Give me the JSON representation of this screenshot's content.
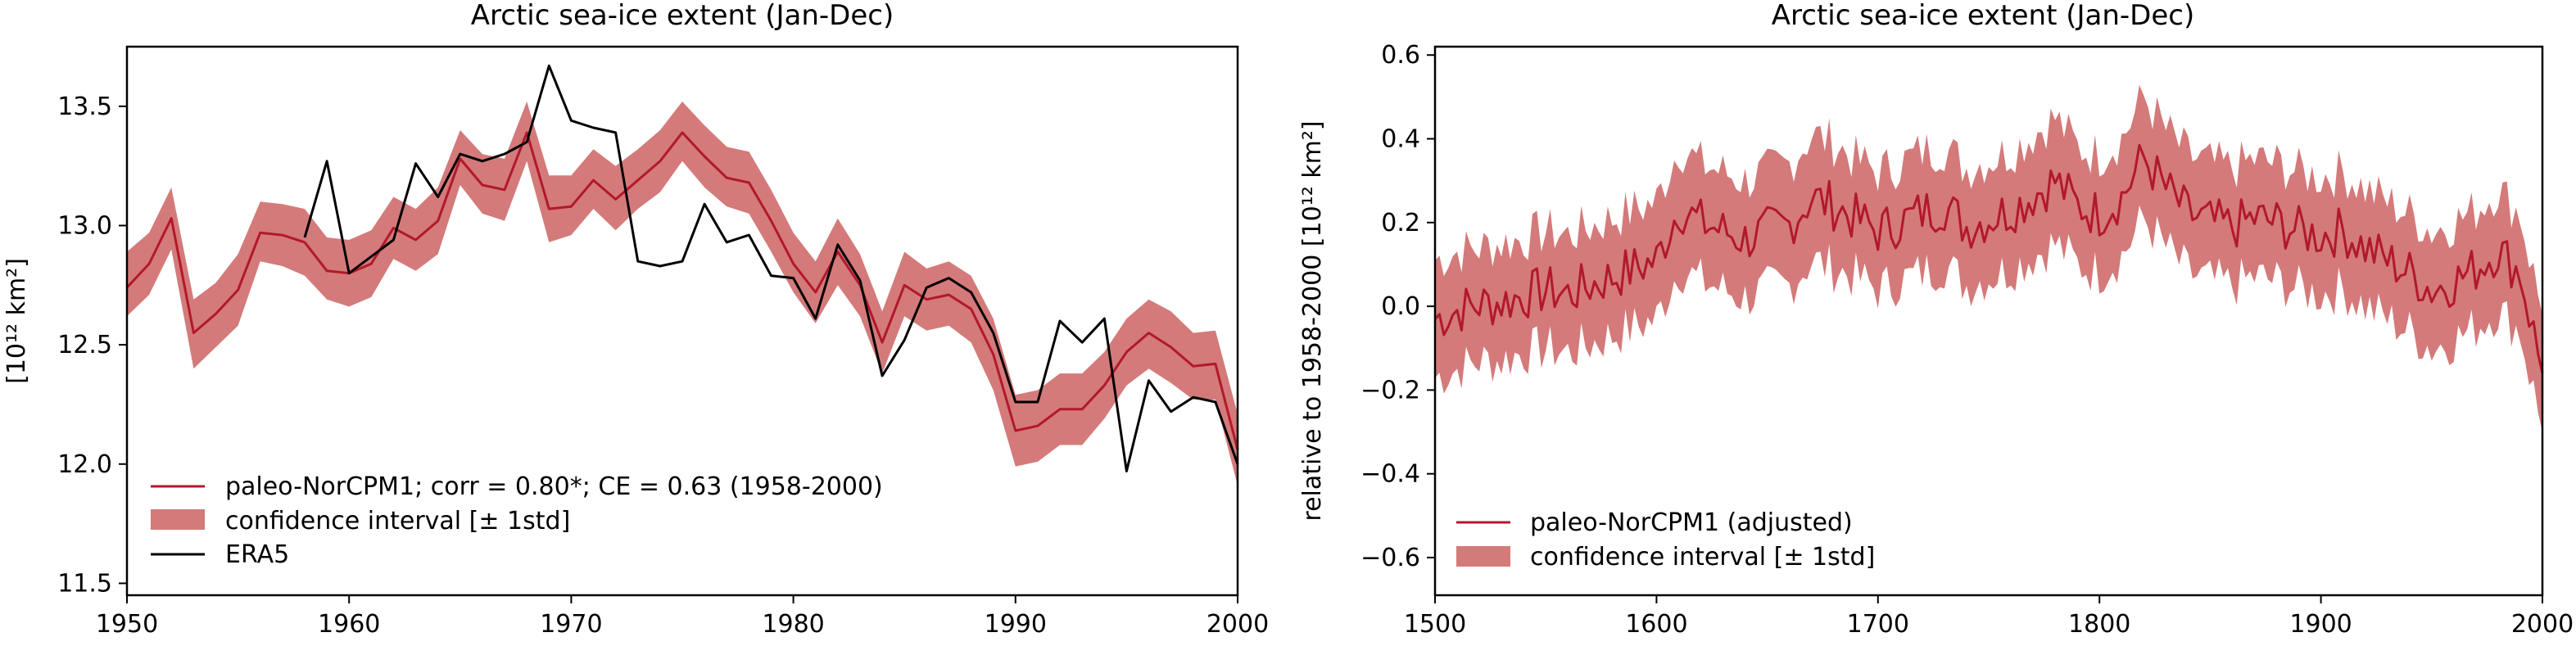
{
  "colors": {
    "model": "#b2182b",
    "band": "#d47a7a",
    "era5": "#000000"
  },
  "chart_data": [
    {
      "type": "line",
      "title": "Arctic sea-ice extent (Jan-Dec)",
      "ylabel": "[10¹² km²]",
      "xlim": [
        1950,
        2000
      ],
      "ylim": [
        11.45,
        13.75
      ],
      "xticks": [
        1950,
        1960,
        1970,
        1980,
        1990,
        2000
      ],
      "yticks": [
        11.5,
        12.0,
        12.5,
        13.0,
        13.5
      ],
      "ytick_labels": [
        "11.5",
        "12.0",
        "12.5",
        "13.0",
        "13.5"
      ],
      "legend_position": "lower-left",
      "series": [
        {
          "name": "paleo-NorCPM1; corr = 0.80*; CE = 0.63 (1958-2000)",
          "kind": "line",
          "x": [
            1950,
            1951,
            1952,
            1953,
            1954,
            1955,
            1956,
            1957,
            1958,
            1959,
            1960,
            1961,
            1962,
            1963,
            1964,
            1965,
            1966,
            1967,
            1968,
            1969,
            1970,
            1971,
            1972,
            1973,
            1974,
            1975,
            1976,
            1977,
            1978,
            1979,
            1980,
            1981,
            1982,
            1983,
            1984,
            1985,
            1986,
            1987,
            1988,
            1989,
            1990,
            1991,
            1992,
            1993,
            1994,
            1995,
            1996,
            1997,
            1998,
            1999,
            2000
          ],
          "y": [
            12.74,
            12.84,
            13.03,
            12.55,
            12.63,
            12.73,
            12.97,
            12.96,
            12.93,
            12.81,
            12.8,
            12.84,
            12.99,
            12.94,
            13.02,
            13.28,
            13.17,
            13.15,
            13.39,
            13.07,
            13.08,
            13.19,
            13.11,
            13.19,
            13.27,
            13.39,
            13.29,
            13.2,
            13.18,
            13.02,
            12.84,
            12.72,
            12.89,
            12.75,
            12.51,
            12.75,
            12.69,
            12.71,
            12.65,
            12.46,
            12.14,
            12.16,
            12.23,
            12.23,
            12.33,
            12.47,
            12.55,
            12.49,
            12.41,
            12.42,
            12.06
          ]
        },
        {
          "name": "confidence interval [± 1std]",
          "kind": "band",
          "x": [
            1950,
            1951,
            1952,
            1953,
            1954,
            1955,
            1956,
            1957,
            1958,
            1959,
            1960,
            1961,
            1962,
            1963,
            1964,
            1965,
            1966,
            1967,
            1968,
            1969,
            1970,
            1971,
            1972,
            1973,
            1974,
            1975,
            1976,
            1977,
            1978,
            1979,
            1980,
            1981,
            1982,
            1983,
            1984,
            1985,
            1986,
            1987,
            1988,
            1989,
            1990,
            1991,
            1992,
            1993,
            1994,
            1995,
            1996,
            1997,
            1998,
            1999,
            2000
          ],
          "lower": [
            12.62,
            12.71,
            12.9,
            12.4,
            12.49,
            12.58,
            12.85,
            12.83,
            12.79,
            12.69,
            12.66,
            12.7,
            12.86,
            12.81,
            12.88,
            13.17,
            13.05,
            13.02,
            13.27,
            12.93,
            12.96,
            13.07,
            12.98,
            13.07,
            13.14,
            13.27,
            13.16,
            13.08,
            13.05,
            12.89,
            12.72,
            12.59,
            12.75,
            12.62,
            12.38,
            12.62,
            12.56,
            12.58,
            12.51,
            12.31,
            11.99,
            12.01,
            12.08,
            12.08,
            12.19,
            12.33,
            12.4,
            12.34,
            12.27,
            12.27,
            11.91
          ],
          "upper": [
            12.89,
            12.97,
            13.16,
            12.69,
            12.76,
            12.88,
            13.1,
            13.09,
            13.07,
            12.95,
            12.94,
            12.98,
            13.12,
            13.07,
            13.16,
            13.4,
            13.3,
            13.28,
            13.52,
            13.21,
            13.21,
            13.32,
            13.25,
            13.32,
            13.4,
            13.52,
            13.42,
            13.33,
            13.31,
            13.15,
            12.97,
            12.85,
            13.03,
            12.88,
            12.64,
            12.89,
            12.82,
            12.85,
            12.79,
            12.61,
            12.29,
            12.31,
            12.38,
            12.38,
            12.47,
            12.61,
            12.69,
            12.64,
            12.55,
            12.56,
            12.21
          ]
        },
        {
          "name": "ERA5",
          "kind": "line",
          "x": [
            1958,
            1959,
            1960,
            1961,
            1962,
            1963,
            1964,
            1965,
            1966,
            1967,
            1968,
            1969,
            1970,
            1971,
            1972,
            1973,
            1974,
            1975,
            1976,
            1977,
            1978,
            1979,
            1980,
            1981,
            1982,
            1983,
            1984,
            1985,
            1986,
            1987,
            1988,
            1989,
            1990,
            1991,
            1992,
            1993,
            1994,
            1995,
            1996,
            1997,
            1998,
            1999,
            2000
          ],
          "y": [
            12.95,
            13.27,
            12.8,
            12.87,
            12.94,
            13.26,
            13.12,
            13.3,
            13.27,
            13.3,
            13.35,
            13.67,
            13.44,
            13.41,
            13.39,
            12.85,
            12.83,
            12.85,
            13.09,
            12.93,
            12.96,
            12.79,
            12.78,
            12.61,
            12.92,
            12.77,
            12.37,
            12.52,
            12.74,
            12.78,
            12.72,
            12.55,
            12.26,
            12.26,
            12.6,
            12.51,
            12.61,
            11.97,
            12.35,
            12.22,
            12.28,
            12.26,
            12.0
          ]
        }
      ]
    },
    {
      "type": "line",
      "title": "Arctic sea-ice extent (Jan-Dec)",
      "ylabel": "relative to 1958-2000 [10¹² km²]",
      "xlim": [
        1500,
        2000
      ],
      "ylim": [
        -0.69,
        0.62
      ],
      "xticks": [
        1500,
        1600,
        1700,
        1800,
        1900,
        2000
      ],
      "yticks": [
        -0.6,
        -0.4,
        -0.2,
        0.0,
        0.2,
        0.4,
        0.6
      ],
      "ytick_labels": [
        "−0.6",
        "−0.4",
        "−0.2",
        "0.0",
        "0.2",
        "0.4",
        "0.6"
      ],
      "legend_position": "lower-left",
      "series": [
        {
          "name": "paleo-NorCPM1 (adjusted)",
          "kind": "line",
          "x": [
            1500,
            1510,
            1520,
            1530,
            1540,
            1550,
            1560,
            1570,
            1580,
            1590,
            1600,
            1610,
            1620,
            1630,
            1640,
            1650,
            1660,
            1670,
            1680,
            1690,
            1700,
            1710,
            1720,
            1730,
            1740,
            1750,
            1760,
            1770,
            1780,
            1790,
            1800,
            1810,
            1820,
            1830,
            1840,
            1850,
            1860,
            1870,
            1880,
            1890,
            1900,
            1910,
            1920,
            1930,
            1940,
            1950,
            1960,
            1970,
            1980,
            1990,
            2000
          ],
          "y": [
            -0.03,
            -0.01,
            0.0,
            0.01,
            0.02,
            0.04,
            0.03,
            0.05,
            0.07,
            0.09,
            0.11,
            0.24,
            0.2,
            0.18,
            0.16,
            0.18,
            0.2,
            0.26,
            0.24,
            0.21,
            0.18,
            0.2,
            0.22,
            0.24,
            0.19,
            0.21,
            0.23,
            0.26,
            0.3,
            0.24,
            0.22,
            0.26,
            0.35,
            0.28,
            0.22,
            0.2,
            0.19,
            0.21,
            0.2,
            0.18,
            0.17,
            0.18,
            0.14,
            0.11,
            0.08,
            0.04,
            0.06,
            0.09,
            0.14,
            0.08,
            -0.16
          ]
        },
        {
          "name": "confidence interval [± 1std]",
          "kind": "band",
          "x": [
            1500,
            1510,
            1520,
            1530,
            1540,
            1550,
            1560,
            1570,
            1580,
            1590,
            1600,
            1610,
            1620,
            1630,
            1640,
            1650,
            1660,
            1670,
            1680,
            1690,
            1700,
            1710,
            1720,
            1730,
            1740,
            1750,
            1760,
            1770,
            1780,
            1790,
            1800,
            1810,
            1820,
            1830,
            1840,
            1850,
            1860,
            1870,
            1880,
            1890,
            1900,
            1910,
            1920,
            1930,
            1940,
            1950,
            1960,
            1970,
            1980,
            1990,
            2000
          ],
          "lower": [
            -0.17,
            -0.15,
            -0.13,
            -0.13,
            -0.11,
            -0.1,
            -0.11,
            -0.09,
            -0.07,
            -0.05,
            -0.03,
            0.09,
            0.06,
            0.04,
            0.02,
            0.04,
            0.05,
            0.11,
            0.09,
            0.07,
            0.04,
            0.06,
            0.08,
            0.1,
            0.05,
            0.07,
            0.09,
            0.12,
            0.15,
            0.1,
            0.08,
            0.12,
            0.21,
            0.14,
            0.08,
            0.06,
            0.05,
            0.07,
            0.06,
            0.04,
            0.03,
            0.04,
            0.0,
            -0.03,
            -0.06,
            -0.1,
            -0.08,
            -0.05,
            -0.01,
            -0.06,
            -0.3
          ],
          "upper": [
            0.11,
            0.13,
            0.14,
            0.15,
            0.16,
            0.18,
            0.17,
            0.19,
            0.21,
            0.23,
            0.25,
            0.38,
            0.34,
            0.32,
            0.3,
            0.32,
            0.34,
            0.41,
            0.39,
            0.35,
            0.32,
            0.34,
            0.37,
            0.38,
            0.33,
            0.35,
            0.37,
            0.41,
            0.45,
            0.38,
            0.36,
            0.4,
            0.5,
            0.42,
            0.36,
            0.34,
            0.33,
            0.35,
            0.34,
            0.32,
            0.31,
            0.32,
            0.28,
            0.25,
            0.22,
            0.18,
            0.2,
            0.23,
            0.28,
            0.22,
            -0.02
          ]
        }
      ]
    }
  ]
}
